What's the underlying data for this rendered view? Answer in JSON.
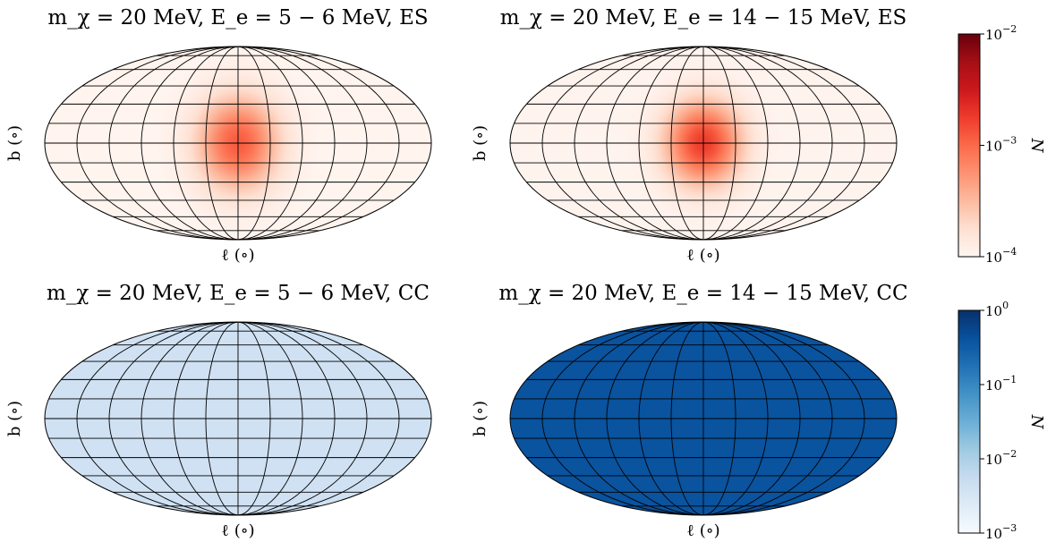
{
  "chart_data": [
    {
      "type": "heatmap",
      "projection": "mollweide",
      "title": "m_χ = 20 MeV, E_e = 5 − 6 MeV, ES",
      "xlabel": "ℓ (∘)",
      "ylabel": "b (∘)",
      "colormap": "Reds",
      "scale": "log",
      "peak_center_value": 0.0012,
      "background_value": 0.0001,
      "peak_width_deg": [
        40,
        55
      ],
      "grid": true
    },
    {
      "type": "heatmap",
      "projection": "mollweide",
      "title": "m_χ = 20 MeV, E_e = 14 − 15 MeV, ES",
      "xlabel": "ℓ (∘)",
      "ylabel": "b (∘)",
      "colormap": "Reds",
      "scale": "log",
      "peak_center_value": 0.0018,
      "background_value": 0.0001,
      "peak_width_deg": [
        38,
        50
      ],
      "grid": true
    },
    {
      "type": "heatmap",
      "projection": "mollweide",
      "title": "m_χ = 20 MeV, E_e = 5 − 6 MeV, CC",
      "xlabel": "ℓ (∘)",
      "ylabel": "b (∘)",
      "colormap": "Blues",
      "scale": "log",
      "uniform_value": 0.004,
      "grid": true
    },
    {
      "type": "heatmap",
      "projection": "mollweide",
      "title": "m_χ = 20 MeV, E_e = 14 − 15 MeV, CC",
      "xlabel": "ℓ (∘)",
      "ylabel": "b (∘)",
      "colormap": "Blues",
      "scale": "log",
      "uniform_value": 0.4,
      "grid": true
    }
  ],
  "colorbars": [
    {
      "colormap": "Reds",
      "scale": "log",
      "range": [
        0.0001,
        0.01
      ],
      "label": "N",
      "ticks": [
        {
          "value": 0.01,
          "base": "10",
          "exp": "−2"
        },
        {
          "value": 0.001,
          "base": "10",
          "exp": "−3"
        },
        {
          "value": 0.0001,
          "base": "10",
          "exp": "−4"
        }
      ]
    },
    {
      "colormap": "Blues",
      "scale": "log",
      "range": [
        0.001,
        1
      ],
      "label": "N",
      "ticks": [
        {
          "value": 1,
          "base": "10",
          "exp": "0"
        },
        {
          "value": 0.1,
          "base": "10",
          "exp": "−1"
        },
        {
          "value": 0.01,
          "base": "10",
          "exp": "−2"
        },
        {
          "value": 0.001,
          "base": "10",
          "exp": "−3"
        }
      ]
    }
  ],
  "colors": {
    "reds": [
      "#fff5f0",
      "#fee0d2",
      "#fcbba1",
      "#fc9272",
      "#fb6a4a",
      "#ef3b2c",
      "#cb181d",
      "#a50f15",
      "#67000d"
    ],
    "blues": [
      "#f7fbff",
      "#deebf7",
      "#c6dbef",
      "#9ecae1",
      "#6baed6",
      "#4292c6",
      "#2171b5",
      "#08519c",
      "#08306b"
    ],
    "grid": "#000000"
  }
}
